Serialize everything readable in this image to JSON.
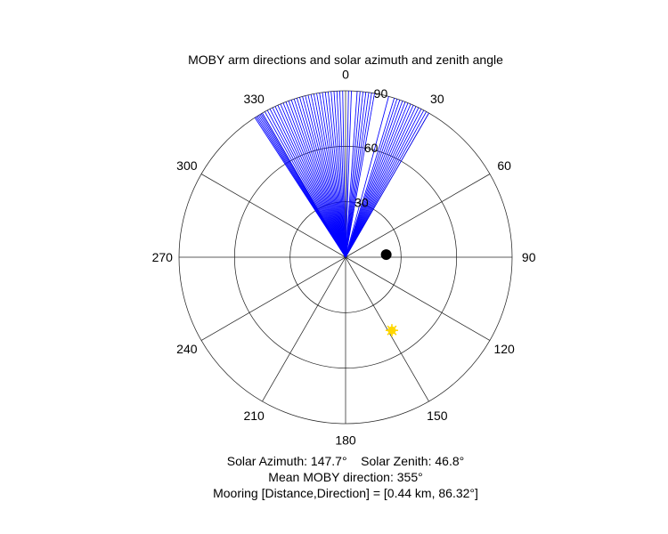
{
  "chart_data": {
    "type": "polar",
    "title": "MOBY arm directions and solar azimuth and zenith angle",
    "theta_zero": "top",
    "theta_direction": "clockwise",
    "theta_ticks": [
      0,
      30,
      60,
      90,
      120,
      150,
      180,
      210,
      240,
      270,
      300,
      330
    ],
    "theta_tick_labels": [
      "0",
      "30",
      "60",
      "90",
      "120",
      "150",
      "180",
      "210",
      "240",
      "270",
      "300",
      "330"
    ],
    "r_range": [
      0,
      90
    ],
    "r_ticks": [
      30,
      60,
      90
    ],
    "r_tick_labels": [
      "30",
      "60",
      "90"
    ],
    "r_label_angle": 10,
    "grid": true,
    "series": [
      {
        "type": "rays",
        "color": "#0000ff",
        "r": 90,
        "directions": [
          327,
          327.5,
          328,
          328.5,
          329,
          329.5,
          330,
          331,
          332,
          333,
          334,
          335,
          336,
          337,
          338,
          339,
          340,
          341,
          342,
          343,
          344,
          345,
          346,
          347,
          348,
          349,
          350,
          351,
          352,
          353,
          354,
          355,
          356,
          357,
          358,
          359,
          1,
          2,
          4,
          5,
          6,
          7,
          8,
          9,
          10,
          15,
          17,
          18,
          19,
          20,
          21,
          22,
          23,
          24,
          25,
          26,
          27,
          28,
          29,
          30
        ]
      },
      {
        "type": "marker",
        "marker": "circle",
        "color": "#000000",
        "theta": 86.32,
        "r": 22
      },
      {
        "type": "marker",
        "marker": "sun",
        "color": "#ffd700",
        "theta": 147.7,
        "r": 46.8
      }
    ]
  },
  "footer": {
    "line1": "Solar Azimuth: 147.7°    Solar Zenith: 46.8°",
    "line2": "Mean MOBY direction: 355°",
    "line3": "Mooring [Distance,Direction] = [0.44 km, 86.32°]"
  }
}
